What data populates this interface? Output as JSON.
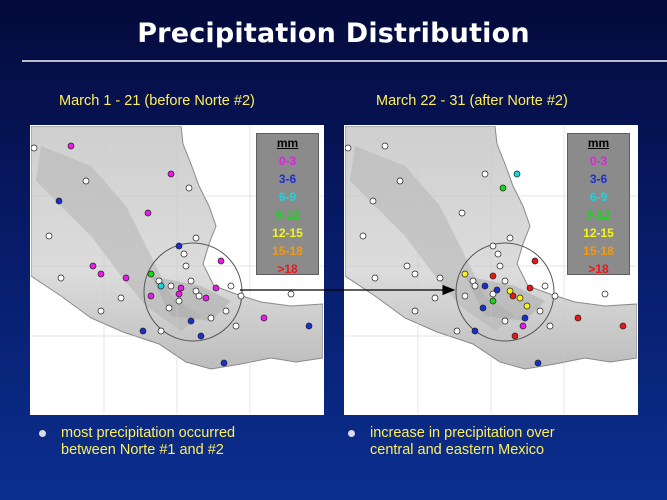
{
  "title": "Precipitation Distribution",
  "panels": [
    {
      "caption": "March 1 - 21 (before Norte #2)",
      "bullet": [
        "most precipitation occurred",
        "between Norte #1 and #2"
      ]
    },
    {
      "caption": "March 22 - 31 (after Norte #2)",
      "bullet": [
        "increase in precipitation over",
        "central and eastern Mexico"
      ]
    }
  ],
  "legend": {
    "unit": "mm",
    "classes": [
      {
        "label": "0-3",
        "color": "#e81ce8"
      },
      {
        "label": "3-6",
        "color": "#1a2fcf"
      },
      {
        "label": "6-9",
        "color": "#18d6e0"
      },
      {
        "label": "9-12",
        "color": "#18d618"
      },
      {
        "label": "12-15",
        "color": "#f5f51a"
      },
      {
        "label": "15-18",
        "color": "#f59a10"
      },
      {
        "label": ">18",
        "color": "#e81818"
      }
    ]
  },
  "colors": {
    "background": "#081a66",
    "text": "#ffef5a",
    "rule": "#b8bccc",
    "station_none": "#ffffff"
  }
}
